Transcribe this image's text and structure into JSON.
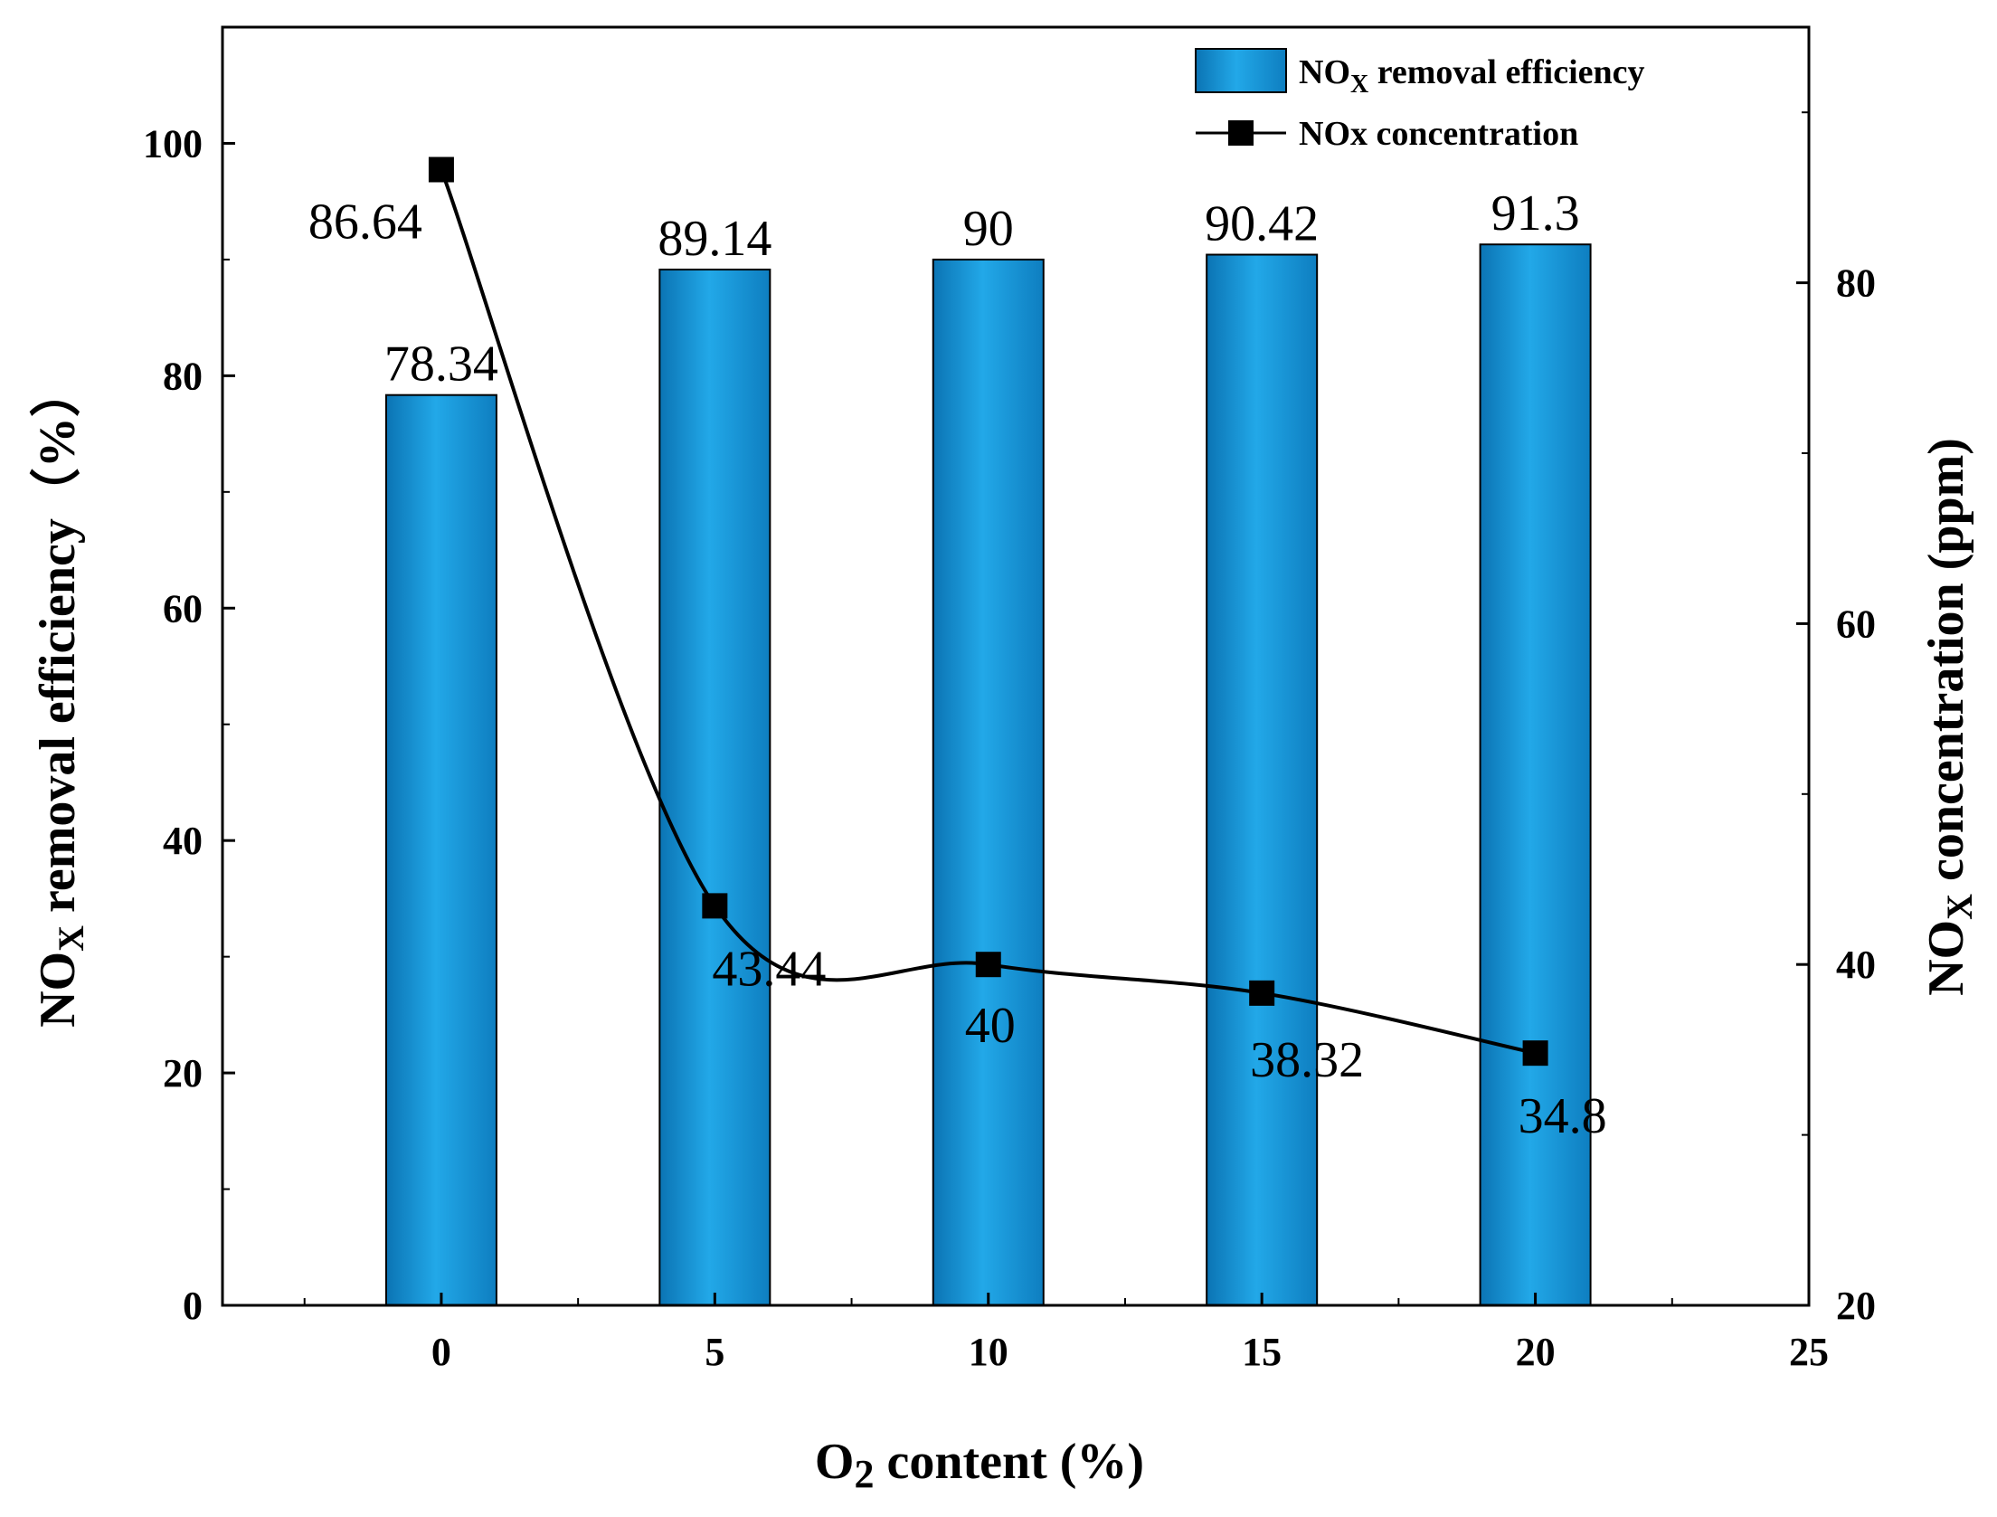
{
  "chart_data": {
    "type": "bar+line",
    "x": [
      0,
      5,
      10,
      15,
      20
    ],
    "xlim": [
      -4,
      25
    ],
    "x_ticks": [
      0,
      5,
      10,
      15,
      20,
      25
    ],
    "xlabel_main": "O",
    "xlabel_sub": "2",
    "xlabel_rest": " content (%)",
    "ylabel_left_main": "NO",
    "ylabel_left_sub": "X",
    "ylabel_left_rest": " removal efficiency（%）",
    "ylim_left": [
      0,
      110
    ],
    "yticks_left": [
      0,
      20,
      40,
      60,
      80,
      100
    ],
    "ylabel_right_main": "NO",
    "ylabel_right_sub": "X",
    "ylabel_right_rest": " concentration (ppm)",
    "ylim_right": [
      20,
      95
    ],
    "yticks_right": [
      20,
      40,
      60,
      80
    ],
    "series": [
      {
        "name": "NOx removal efficiency",
        "type": "bar",
        "axis": "left",
        "values": [
          78.34,
          89.14,
          90,
          90.42,
          91.3
        ],
        "labels": [
          "78.34",
          "89.14",
          "90",
          "90.42",
          "91.3"
        ],
        "color": "#1E9BD7"
      },
      {
        "name": "NOx concentration",
        "type": "line",
        "axis": "right",
        "values": [
          86.64,
          43.44,
          40,
          38.32,
          34.8
        ],
        "labels": [
          "86.64",
          "43.44",
          "40",
          "38.32",
          "34.8"
        ],
        "color": "#000000",
        "marker": "square"
      }
    ],
    "legend": {
      "position": "top-right",
      "bar_entry_main": "NO",
      "bar_entry_sub": "X",
      "bar_entry_rest": " removal efficiency",
      "line_entry": "NOx concentration"
    }
  }
}
